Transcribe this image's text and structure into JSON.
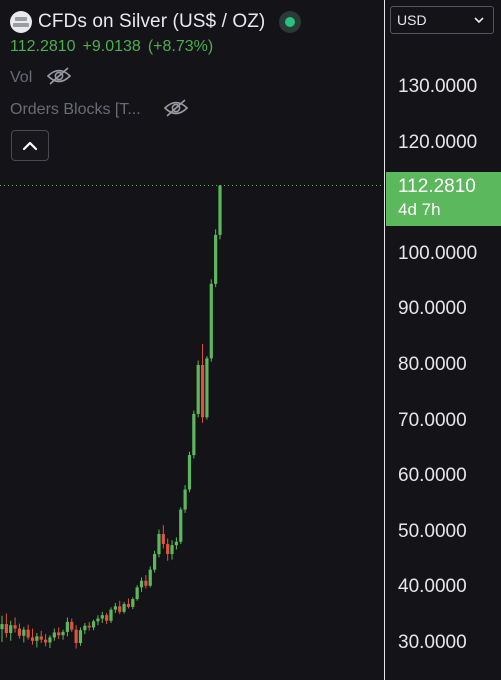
{
  "header": {
    "symbol": "CFDs on Silver (US$ / OZ)",
    "last_price": "112.2810",
    "change": "+9.0138",
    "change_pct": "(+8.73%)"
  },
  "indicators": {
    "vol_label": "Vol",
    "orders_blocks_label": "Orders Blocks [T..."
  },
  "price_axis": {
    "currency": "USD",
    "ticks": [
      "130.0000",
      "120.0000",
      "100.0000",
      "90.0000",
      "80.0000",
      "70.0000",
      "60.0000",
      "50.0000",
      "40.0000",
      "30.0000"
    ],
    "last_price_tag": "112.2810",
    "countdown": "4d 7h"
  },
  "colors": {
    "up": "#5cb85c",
    "down": "#e0533f",
    "background": "#131318",
    "price_line": "#5cb85c"
  },
  "chart_data": {
    "type": "candlestick",
    "ylim": [
      25,
      145
    ],
    "last_price": 112.281,
    "candles": [
      {
        "o": 32.5,
        "h": 34.9,
        "l": 30.2,
        "c": 33.4
      },
      {
        "o": 33.4,
        "h": 35.3,
        "l": 31.0,
        "c": 31.8
      },
      {
        "o": 31.8,
        "h": 34.0,
        "l": 30.4,
        "c": 33.2
      },
      {
        "o": 33.2,
        "h": 34.6,
        "l": 31.9,
        "c": 32.6
      },
      {
        "o": 32.6,
        "h": 33.5,
        "l": 30.8,
        "c": 31.3
      },
      {
        "o": 31.3,
        "h": 32.9,
        "l": 30.1,
        "c": 32.4
      },
      {
        "o": 32.4,
        "h": 33.3,
        "l": 30.6,
        "c": 31.0
      },
      {
        "o": 31.0,
        "h": 32.6,
        "l": 29.7,
        "c": 30.4
      },
      {
        "o": 30.4,
        "h": 31.8,
        "l": 29.2,
        "c": 31.2
      },
      {
        "o": 31.2,
        "h": 32.2,
        "l": 30.0,
        "c": 30.6
      },
      {
        "o": 30.6,
        "h": 31.6,
        "l": 29.4,
        "c": 30.1
      },
      {
        "o": 30.1,
        "h": 31.4,
        "l": 29.1,
        "c": 31.0
      },
      {
        "o": 31.0,
        "h": 32.6,
        "l": 30.4,
        "c": 31.9
      },
      {
        "o": 31.9,
        "h": 32.8,
        "l": 30.7,
        "c": 31.4
      },
      {
        "o": 31.4,
        "h": 32.4,
        "l": 30.6,
        "c": 32.0
      },
      {
        "o": 32.0,
        "h": 34.6,
        "l": 31.2,
        "c": 33.8
      },
      {
        "o": 33.8,
        "h": 34.4,
        "l": 32.0,
        "c": 32.4
      },
      {
        "o": 32.4,
        "h": 33.2,
        "l": 29.0,
        "c": 30.0
      },
      {
        "o": 30.0,
        "h": 32.8,
        "l": 29.5,
        "c": 32.3
      },
      {
        "o": 32.3,
        "h": 33.6,
        "l": 31.6,
        "c": 33.1
      },
      {
        "o": 33.1,
        "h": 33.8,
        "l": 32.2,
        "c": 32.8
      },
      {
        "o": 32.8,
        "h": 34.2,
        "l": 32.3,
        "c": 33.9
      },
      {
        "o": 33.9,
        "h": 35.0,
        "l": 33.2,
        "c": 34.4
      },
      {
        "o": 34.4,
        "h": 35.6,
        "l": 33.6,
        "c": 35.0
      },
      {
        "o": 35.0,
        "h": 35.4,
        "l": 33.4,
        "c": 34.0
      },
      {
        "o": 34.0,
        "h": 36.4,
        "l": 33.6,
        "c": 36.0
      },
      {
        "o": 36.0,
        "h": 37.2,
        "l": 35.4,
        "c": 36.6
      },
      {
        "o": 36.6,
        "h": 37.6,
        "l": 35.2,
        "c": 35.6
      },
      {
        "o": 35.6,
        "h": 37.4,
        "l": 35.3,
        "c": 37.0
      },
      {
        "o": 37.0,
        "h": 38.0,
        "l": 36.2,
        "c": 36.5
      },
      {
        "o": 36.5,
        "h": 38.2,
        "l": 36.1,
        "c": 37.9
      },
      {
        "o": 37.9,
        "h": 40.4,
        "l": 37.6,
        "c": 40.0
      },
      {
        "o": 40.0,
        "h": 41.8,
        "l": 39.2,
        "c": 41.2
      },
      {
        "o": 41.2,
        "h": 42.2,
        "l": 39.8,
        "c": 40.3
      },
      {
        "o": 40.3,
        "h": 43.8,
        "l": 40.0,
        "c": 43.2
      },
      {
        "o": 43.2,
        "h": 46.6,
        "l": 42.7,
        "c": 46.0
      },
      {
        "o": 46.0,
        "h": 50.4,
        "l": 45.4,
        "c": 49.6
      },
      {
        "o": 49.6,
        "h": 51.2,
        "l": 47.0,
        "c": 47.8
      },
      {
        "o": 47.8,
        "h": 48.8,
        "l": 44.8,
        "c": 46.0
      },
      {
        "o": 46.0,
        "h": 48.5,
        "l": 45.0,
        "c": 47.6
      },
      {
        "o": 47.6,
        "h": 49.0,
        "l": 46.8,
        "c": 48.2
      },
      {
        "o": 48.2,
        "h": 54.4,
        "l": 47.8,
        "c": 54.0
      },
      {
        "o": 54.0,
        "h": 58.4,
        "l": 53.4,
        "c": 57.6
      },
      {
        "o": 57.6,
        "h": 64.4,
        "l": 57.1,
        "c": 63.8
      },
      {
        "o": 63.8,
        "h": 71.8,
        "l": 63.2,
        "c": 71.2
      },
      {
        "o": 71.2,
        "h": 80.8,
        "l": 70.6,
        "c": 80.0
      },
      {
        "o": 80.0,
        "h": 83.8,
        "l": 69.6,
        "c": 70.6
      },
      {
        "o": 70.6,
        "h": 81.6,
        "l": 70.2,
        "c": 81.2
      },
      {
        "o": 81.2,
        "h": 95.4,
        "l": 80.6,
        "c": 94.6
      },
      {
        "o": 94.6,
        "h": 104.4,
        "l": 94.0,
        "c": 103.4
      },
      {
        "o": 103.4,
        "h": 112.4,
        "l": 102.6,
        "c": 112.281
      }
    ]
  }
}
